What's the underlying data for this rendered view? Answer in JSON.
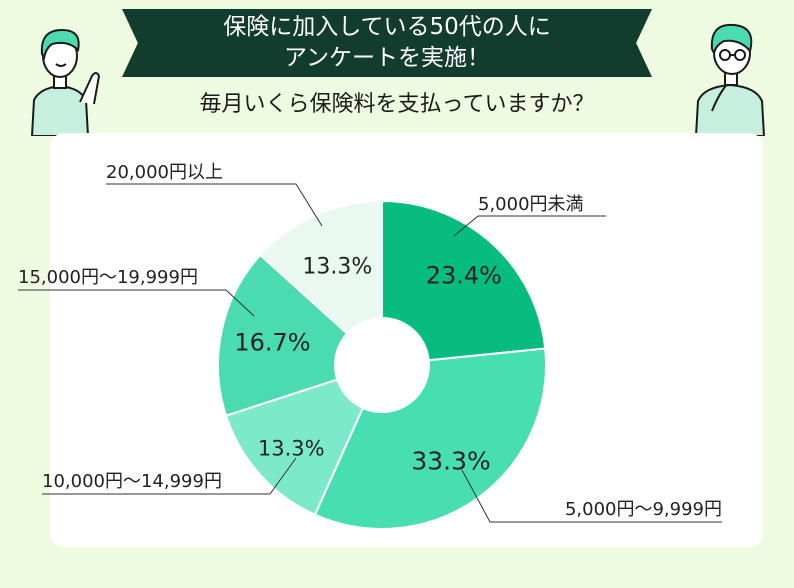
{
  "header": {
    "title_line1": "保険に加入している50代の人に",
    "title_line2": "アンケートを実施！",
    "question": "毎月いくら保険料を支払っていますか？"
  },
  "colors": {
    "banner": "#113c2e",
    "background": "#effbe0",
    "slice_1": "#06bd7f",
    "slice_2": "#47dfb0",
    "slice_3": "#7ceac8",
    "slice_4": "#4adcb0",
    "slice_5": "#e9f9ef"
  },
  "chart_data": {
    "type": "pie",
    "categories": [
      "5,000円未満",
      "5,000円〜9,999円",
      "10,000円〜14,999円",
      "15,000円〜19,999円",
      "20,000円以上"
    ],
    "values": [
      23.4,
      33.3,
      13.3,
      16.7,
      13.3
    ],
    "value_labels": [
      "23.4%",
      "33.3%",
      "13.3%",
      "16.7%",
      "13.3%"
    ],
    "unit": "%",
    "donut": true
  }
}
